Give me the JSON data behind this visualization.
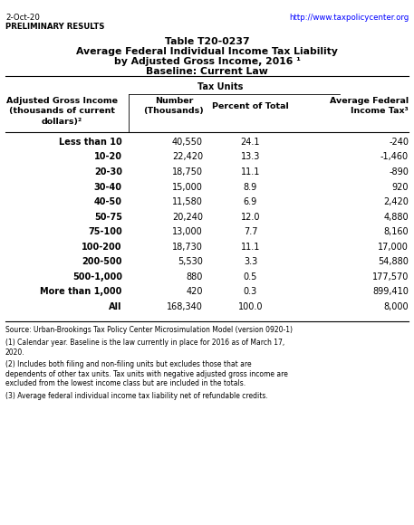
{
  "date": "2-Oct-20",
  "preliminary": "PRELIMINARY RESULTS",
  "url": "http://www.taxpolicycenter.org",
  "title1": "Table T20-0237",
  "title2": "Average Federal Individual Income Tax Liability",
  "title3": "by Adjusted Gross Income, 2016 ¹",
  "title4": "Baseline: Current Law",
  "col_header_span": "Tax Units",
  "col1_header_line1": "Adjusted Gross Income",
  "col1_header_line2": "(thousands of current",
  "col1_header_line3": "dollars)²",
  "col2_header_line1": "Number",
  "col2_header_line2": "(Thousands)",
  "col3_header_line1": "Percent of Total",
  "col4_header_line1": "Average Federal",
  "col4_header_line2": "Income Tax³",
  "income_groups": [
    "Less than 10",
    "10-20",
    "20-30",
    "30-40",
    "40-50",
    "50-75",
    "75-100",
    "100-200",
    "200-500",
    "500-1,000",
    "More than 1,000",
    "All"
  ],
  "number_thousands": [
    "40,550",
    "22,420",
    "18,750",
    "15,000",
    "11,580",
    "20,240",
    "13,000",
    "18,730",
    "5,530",
    "880",
    "420",
    "168,340"
  ],
  "percent_total": [
    "24.1",
    "13.3",
    "11.1",
    "8.9",
    "6.9",
    "12.0",
    "7.7",
    "11.1",
    "3.3",
    "0.5",
    "0.3",
    "100.0"
  ],
  "avg_tax": [
    "-240",
    "-1,460",
    "-890",
    "920",
    "2,420",
    "4,880",
    "8,160",
    "17,000",
    "54,880",
    "177,570",
    "899,410",
    "8,000"
  ],
  "footnote1": "Source: Urban-Brookings Tax Policy Center Microsimulation Model (version 0920-1)",
  "footnote2": "(1) Calendar year. Baseline is the law currently in place for 2016 as of March 17,\n2020.",
  "footnote3": "(2) Includes both filing and non-filing units but excludes those that are\ndependents of other tax units. Tax units with negative adjusted gross income are\nexcluded from the lowest income class but are included in the totals.",
  "footnote4": "(3) Average federal individual income tax liability net of refundable credits.",
  "bg_color": "#ffffff",
  "text_color": "#000000"
}
